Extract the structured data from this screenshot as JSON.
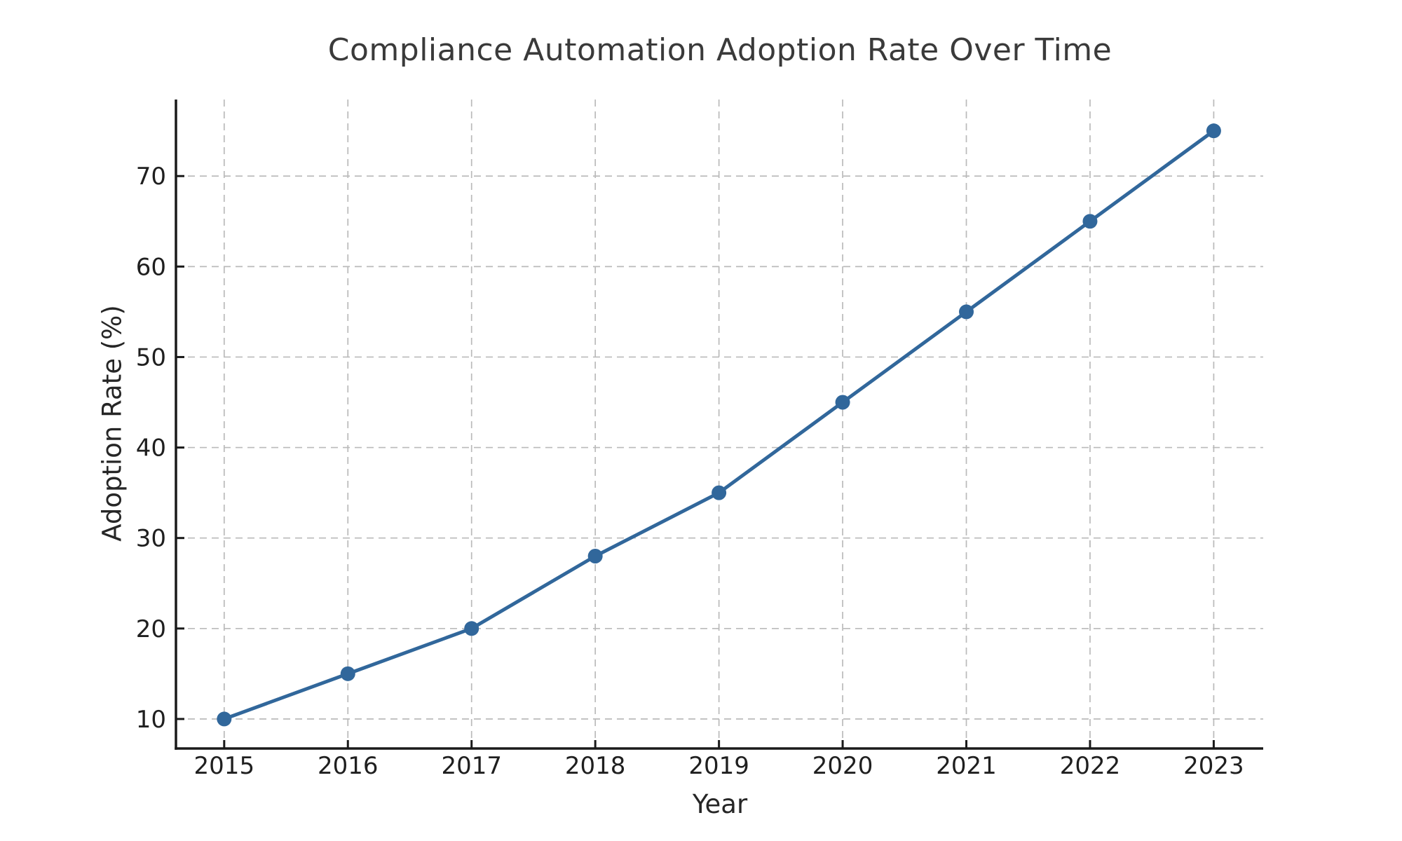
{
  "chart_data": {
    "type": "line",
    "title": "Compliance Automation Adoption Rate Over Time",
    "xlabel": "Year",
    "ylabel": "Adoption Rate (%)",
    "x": [
      2015,
      2016,
      2017,
      2018,
      2019,
      2020,
      2021,
      2022,
      2023
    ],
    "series": [
      {
        "name": "Adoption Rate (%)",
        "values": [
          10,
          15,
          20,
          28,
          35,
          45,
          55,
          65,
          75
        ],
        "color": "#31679B",
        "marker": "circle"
      }
    ],
    "xtick_labels": [
      "2015",
      "2016",
      "2017",
      "2018",
      "2019",
      "2020",
      "2021",
      "2022",
      "2023"
    ],
    "ytick_values": [
      10,
      20,
      30,
      40,
      50,
      60,
      70
    ],
    "ytick_labels": [
      "10",
      "20",
      "30",
      "40",
      "50",
      "60",
      "70"
    ],
    "xlim": [
      2014.61,
      2023.4
    ],
    "ylim": [
      6.74,
      78.46
    ],
    "grid": true,
    "grid_line_style": "dashed",
    "legend_position": "none",
    "styles": {
      "line_color": "#31679B",
      "grid_color": "#bababa",
      "axis_color": "#1a1a1a",
      "tick_text_color": "#1f1f1f",
      "title_color": "#3a3a3a",
      "background": "#ffffff"
    }
  }
}
